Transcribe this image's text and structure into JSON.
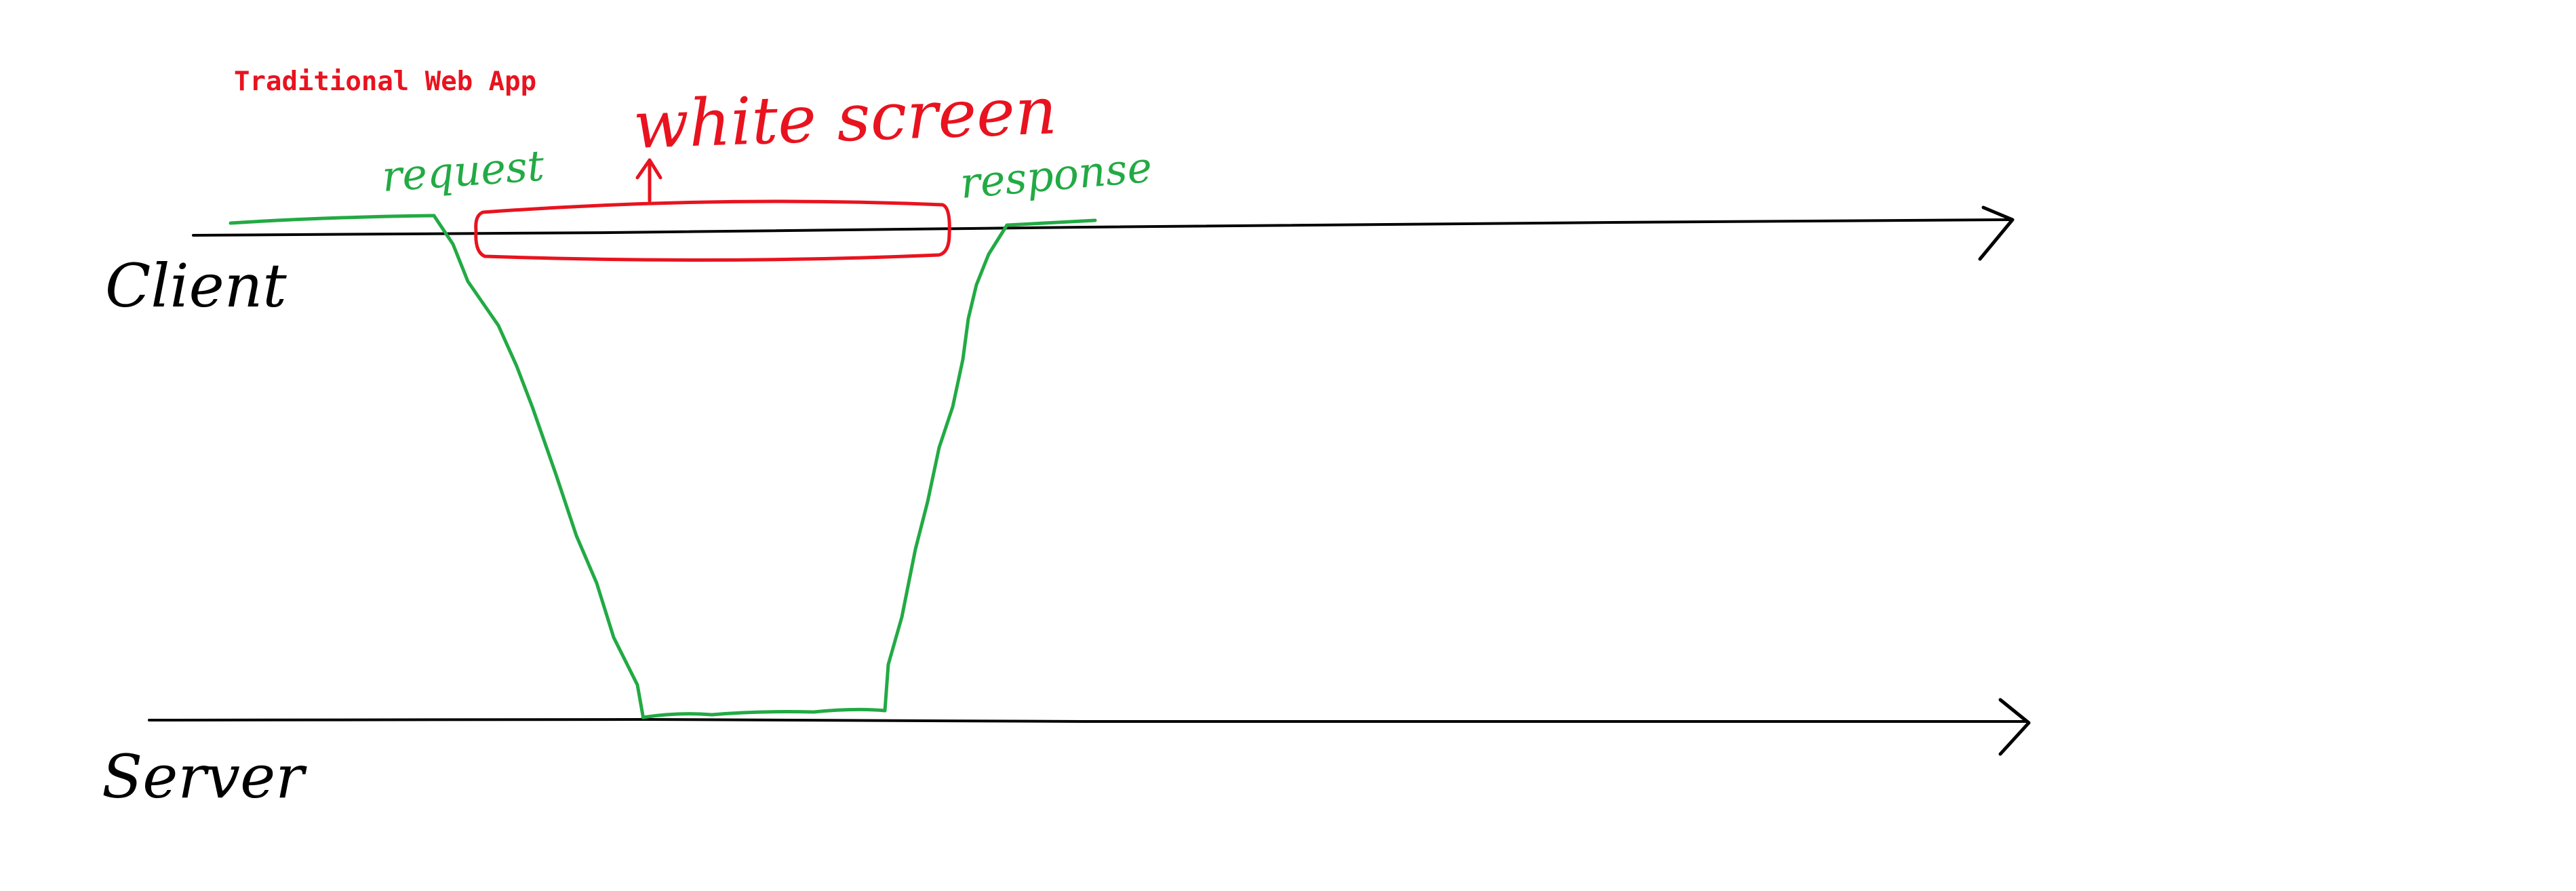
{
  "diagram": {
    "title": "Traditional Web App",
    "lanes": {
      "client_label": "Client",
      "server_label": "Server"
    },
    "annotations": {
      "white_screen": "white screen",
      "request": "request",
      "response": "response"
    },
    "colors": {
      "title": "#e8131f",
      "timeline": "#000000",
      "flow": "#22aa44",
      "highlight": "#e8131f"
    }
  }
}
